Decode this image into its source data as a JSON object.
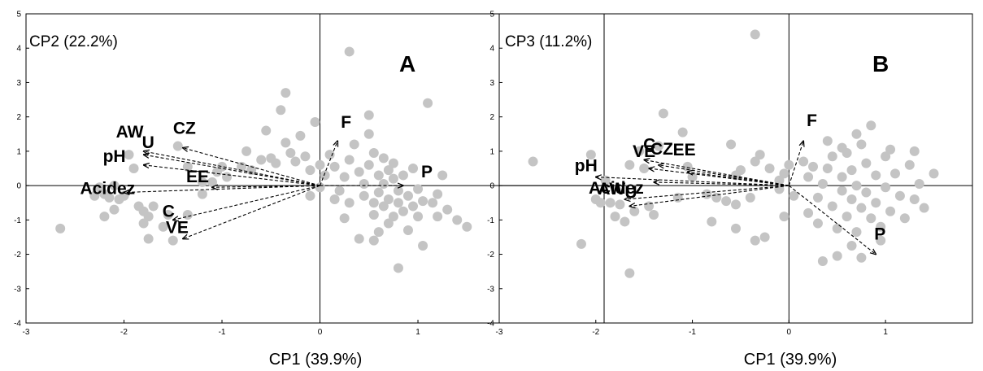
{
  "chart_data": [
    {
      "type": "scatter",
      "panel_label": "A",
      "xlabel": "CP1 (39.9%)",
      "ylabel": "CP2 (22.2%)",
      "xlim": [
        -3,
        2
      ],
      "ylim": [
        -4,
        5
      ],
      "xticks": [
        -3,
        -2,
        -1,
        0,
        1
      ],
      "yticks": [
        -4,
        -3,
        -2,
        -1,
        0,
        1,
        2,
        3,
        4,
        5
      ],
      "vectors": [
        {
          "name": "F",
          "x": 0.18,
          "y": 1.3
        },
        {
          "name": "P",
          "x": 0.85,
          "y": 0.0
        },
        {
          "name": "CZ",
          "x": -1.4,
          "y": 1.1
        },
        {
          "name": "AW",
          "x": -1.8,
          "y": 1.0
        },
        {
          "name": "U",
          "x": -1.8,
          "y": 0.9
        },
        {
          "name": "pH",
          "x": -1.8,
          "y": 0.6
        },
        {
          "name": "EE",
          "x": -1.1,
          "y": -0.05
        },
        {
          "name": "Acidez",
          "x": -2.0,
          "y": -0.2
        },
        {
          "name": "C",
          "x": -1.5,
          "y": -1.0
        },
        {
          "name": "VE",
          "x": -1.4,
          "y": -1.55
        }
      ],
      "points": [
        [
          -2.65,
          -1.25
        ],
        [
          -2.3,
          -0.3
        ],
        [
          -2.25,
          -0.05
        ],
        [
          -2.2,
          -0.25
        ],
        [
          -2.15,
          -0.35
        ],
        [
          -2.1,
          0.0
        ],
        [
          -2.05,
          -0.4
        ],
        [
          -2.0,
          -0.3
        ],
        [
          -2.2,
          -0.9
        ],
        [
          -2.1,
          -0.7
        ],
        [
          -1.95,
          0.9
        ],
        [
          -1.9,
          0.5
        ],
        [
          -1.85,
          -0.6
        ],
        [
          -1.8,
          -1.1
        ],
        [
          -1.8,
          -0.75
        ],
        [
          -1.75,
          -1.55
        ],
        [
          -1.75,
          -0.9
        ],
        [
          -1.7,
          -0.6
        ],
        [
          -1.6,
          -1.2
        ],
        [
          -1.55,
          -0.85
        ],
        [
          -1.5,
          -1.6
        ],
        [
          -1.45,
          1.15
        ],
        [
          -1.35,
          -0.85
        ],
        [
          -1.35,
          0.55
        ],
        [
          -1.2,
          -0.25
        ],
        [
          -1.2,
          0.1
        ],
        [
          -1.1,
          0.1
        ],
        [
          -1.05,
          0.4
        ],
        [
          -1.0,
          0.55
        ],
        [
          -0.95,
          0.25
        ],
        [
          -0.8,
          0.55
        ],
        [
          -0.75,
          1.0
        ],
        [
          -0.7,
          0.45
        ],
        [
          -0.6,
          0.75
        ],
        [
          -0.55,
          1.6
        ],
        [
          -0.5,
          0.8
        ],
        [
          -0.45,
          0.65
        ],
        [
          -0.4,
          2.2
        ],
        [
          -0.35,
          2.7
        ],
        [
          -0.35,
          1.25
        ],
        [
          -0.3,
          0.95
        ],
        [
          -0.25,
          0.7
        ],
        [
          -0.2,
          1.45
        ],
        [
          -0.15,
          0.85
        ],
        [
          -0.1,
          0.45
        ],
        [
          -0.05,
          1.85
        ],
        [
          0.0,
          0.6
        ],
        [
          0.05,
          0.3
        ],
        [
          0.1,
          0.9
        ],
        [
          0.15,
          0.55
        ],
        [
          0.2,
          -0.15
        ],
        [
          0.25,
          0.25
        ],
        [
          0.3,
          3.9
        ],
        [
          0.3,
          0.75
        ],
        [
          0.35,
          1.2
        ],
        [
          0.4,
          0.4
        ],
        [
          0.45,
          -0.3
        ],
        [
          0.45,
          0.05
        ],
        [
          0.5,
          2.05
        ],
        [
          0.5,
          1.5
        ],
        [
          0.5,
          0.6
        ],
        [
          0.55,
          -0.5
        ],
        [
          0.55,
          -0.85
        ],
        [
          0.55,
          0.95
        ],
        [
          0.6,
          0.3
        ],
        [
          0.6,
          -0.2
        ],
        [
          0.6,
          -1.35
        ],
        [
          0.65,
          0.8
        ],
        [
          0.65,
          0.05
        ],
        [
          0.65,
          -0.6
        ],
        [
          0.7,
          -0.4
        ],
        [
          0.7,
          0.45
        ],
        [
          0.7,
          -1.1
        ],
        [
          0.75,
          0.2
        ],
        [
          0.75,
          -0.9
        ],
        [
          0.75,
          0.65
        ],
        [
          0.8,
          -0.15
        ],
        [
          0.8,
          -0.5
        ],
        [
          0.8,
          -2.4
        ],
        [
          0.85,
          -0.75
        ],
        [
          0.85,
          0.3
        ],
        [
          0.9,
          -0.3
        ],
        [
          0.9,
          -1.3
        ],
        [
          0.95,
          -0.6
        ],
        [
          0.95,
          0.5
        ],
        [
          1.0,
          -0.9
        ],
        [
          1.0,
          -0.1
        ],
        [
          1.05,
          -0.45
        ],
        [
          1.05,
          -1.75
        ],
        [
          1.1,
          2.4
        ],
        [
          1.15,
          -0.5
        ],
        [
          1.2,
          -0.25
        ],
        [
          1.2,
          -0.9
        ],
        [
          1.25,
          0.3
        ],
        [
          1.3,
          -0.7
        ],
        [
          1.4,
          -1.0
        ],
        [
          1.5,
          -1.2
        ],
        [
          0.4,
          -1.55
        ],
        [
          0.55,
          -1.6
        ],
        [
          0.3,
          -0.5
        ],
        [
          0.25,
          -0.95
        ],
        [
          0.0,
          -0.05
        ],
        [
          -0.1,
          -0.3
        ],
        [
          0.15,
          -0.4
        ]
      ]
    },
    {
      "type": "scatter",
      "panel_label": "B",
      "xlabel": "CP1 (39.9%)",
      "ylabel": "CP3 (11.2%)",
      "xlim": [
        -3,
        2
      ],
      "ylim": [
        -4,
        5
      ],
      "xticks": [
        -3,
        -2,
        -1,
        0,
        1
      ],
      "yticks": [
        -4,
        -3,
        -2,
        -1,
        0,
        1,
        2,
        3,
        4,
        5
      ],
      "vectors": [
        {
          "name": "F",
          "x": 0.15,
          "y": 1.3
        },
        {
          "name": "P",
          "x": 0.9,
          "y": -2.0
        },
        {
          "name": "C",
          "x": -1.5,
          "y": 0.75
        },
        {
          "name": "CZ",
          "x": -1.35,
          "y": 0.6
        },
        {
          "name": "EE",
          "x": -1.05,
          "y": 0.4
        },
        {
          "name": "VE",
          "x": -1.45,
          "y": 0.5
        },
        {
          "name": "pH",
          "x": -2.0,
          "y": 0.25
        },
        {
          "name": "Acidez",
          "x": -1.4,
          "y": 0.1
        },
        {
          "name": "AW",
          "x": -1.7,
          "y": -0.4
        },
        {
          "name": "U",
          "x": -1.65,
          "y": -0.6
        }
      ],
      "points": [
        [
          -2.65,
          0.7
        ],
        [
          -2.15,
          -1.7
        ],
        [
          -2.05,
          0.9
        ],
        [
          -2.0,
          -0.4
        ],
        [
          -1.95,
          -0.5
        ],
        [
          -1.9,
          0.15
        ],
        [
          -1.85,
          -0.5
        ],
        [
          -1.8,
          -0.9
        ],
        [
          -1.75,
          -0.55
        ],
        [
          -1.7,
          -1.05
        ],
        [
          -1.65,
          -2.55
        ],
        [
          -1.65,
          0.6
        ],
        [
          -1.6,
          -0.75
        ],
        [
          -1.55,
          1.0
        ],
        [
          -1.5,
          0.5
        ],
        [
          -1.45,
          -0.6
        ],
        [
          -1.4,
          -0.85
        ],
        [
          -1.35,
          1.15
        ],
        [
          -1.3,
          2.1
        ],
        [
          -1.15,
          -0.35
        ],
        [
          -1.1,
          1.55
        ],
        [
          -1.05,
          0.55
        ],
        [
          -1.0,
          0.25
        ],
        [
          -0.85,
          -0.25
        ],
        [
          -0.8,
          -1.05
        ],
        [
          -0.75,
          -0.35
        ],
        [
          -0.6,
          1.2
        ],
        [
          -0.55,
          -0.55
        ],
        [
          -0.55,
          0.3
        ],
        [
          -0.5,
          0.45
        ],
        [
          -0.4,
          -0.35
        ],
        [
          -0.35,
          0.7
        ],
        [
          -0.3,
          0.9
        ],
        [
          -0.25,
          -1.5
        ],
        [
          -0.2,
          0.5
        ],
        [
          -0.1,
          0.15
        ],
        [
          -0.05,
          0.35
        ],
        [
          0.0,
          0.6
        ],
        [
          -0.1,
          -0.1
        ],
        [
          0.05,
          -0.3
        ],
        [
          -0.05,
          -0.9
        ],
        [
          -0.35,
          -1.6
        ],
        [
          -0.55,
          -1.25
        ],
        [
          0.15,
          0.7
        ],
        [
          0.2,
          0.25
        ],
        [
          0.25,
          0.55
        ],
        [
          0.3,
          -0.35
        ],
        [
          0.3,
          -1.1
        ],
        [
          0.35,
          0.05
        ],
        [
          0.35,
          -2.2
        ],
        [
          0.4,
          0.5
        ],
        [
          0.45,
          0.85
        ],
        [
          0.45,
          -0.6
        ],
        [
          0.5,
          -1.25
        ],
        [
          0.5,
          -2.05
        ],
        [
          0.55,
          0.25
        ],
        [
          0.55,
          -0.15
        ],
        [
          0.6,
          0.95
        ],
        [
          0.6,
          -0.9
        ],
        [
          0.65,
          0.45
        ],
        [
          0.65,
          -0.4
        ],
        [
          0.65,
          -1.75
        ],
        [
          0.7,
          1.5
        ],
        [
          0.7,
          0.0
        ],
        [
          0.7,
          -1.35
        ],
        [
          0.75,
          1.2
        ],
        [
          0.75,
          -0.65
        ],
        [
          0.75,
          -2.1
        ],
        [
          0.8,
          0.65
        ],
        [
          0.8,
          -0.2
        ],
        [
          0.85,
          -0.95
        ],
        [
          0.85,
          1.75
        ],
        [
          0.9,
          0.3
        ],
        [
          0.9,
          -0.5
        ],
        [
          0.95,
          -1.2
        ],
        [
          0.95,
          -1.6
        ],
        [
          1.0,
          0.85
        ],
        [
          1.0,
          -0.05
        ],
        [
          1.05,
          1.05
        ],
        [
          1.05,
          -0.75
        ],
        [
          1.1,
          0.35
        ],
        [
          1.15,
          -0.3
        ],
        [
          1.2,
          -0.95
        ],
        [
          1.25,
          0.6
        ],
        [
          1.3,
          -0.4
        ],
        [
          1.35,
          0.05
        ],
        [
          1.4,
          -0.65
        ],
        [
          1.5,
          0.35
        ],
        [
          1.3,
          1.0
        ],
        [
          0.4,
          1.3
        ],
        [
          0.55,
          1.1
        ],
        [
          0.2,
          -0.8
        ],
        [
          -0.65,
          -0.45
        ],
        [
          -0.35,
          4.4
        ]
      ]
    }
  ]
}
